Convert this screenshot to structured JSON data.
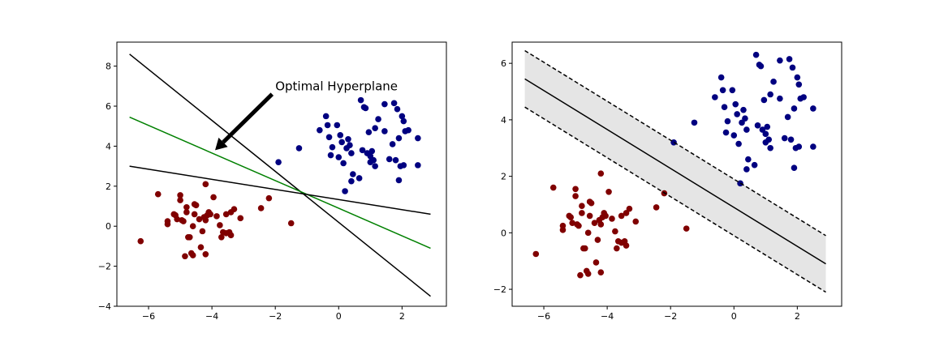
{
  "chart_data": [
    {
      "type": "scatter",
      "title": "",
      "xlabel": "",
      "ylabel": "",
      "xlim": [
        -7.0,
        3.4
      ],
      "ylim": [
        -4.0,
        9.2
      ],
      "xticks": [
        -6,
        -4,
        -2,
        0,
        2
      ],
      "yticks": [
        -4,
        -2,
        0,
        2,
        4,
        6,
        8
      ],
      "tick_labels_x": [
        "−6",
        "−4",
        "−2",
        "0",
        "2"
      ],
      "tick_labels_y": [
        "−4",
        "−2",
        "0",
        "2",
        "4",
        "6",
        "8"
      ],
      "grid": false,
      "annotation": {
        "text": "Optimal Hyperplane",
        "text_xy": [
          -2.0,
          7.0
        ],
        "arrow_start": [
          -2.1,
          6.6
        ],
        "arrow_end": [
          -3.9,
          3.8
        ]
      },
      "series": [
        {
          "kind": "points",
          "color": "#800000",
          "points": [
            [
              -6.25,
              -0.75
            ],
            [
              -5.7,
              1.6
            ],
            [
              -5.4,
              0.25
            ],
            [
              -5.4,
              0.1
            ],
            [
              -5.2,
              0.6
            ],
            [
              -5.15,
              0.55
            ],
            [
              -5.1,
              0.35
            ],
            [
              -5.0,
              1.55
            ],
            [
              -5.0,
              1.3
            ],
            [
              -4.95,
              0.3
            ],
            [
              -4.9,
              0.25
            ],
            [
              -4.85,
              -1.5
            ],
            [
              -4.8,
              0.95
            ],
            [
              -4.8,
              0.7
            ],
            [
              -4.75,
              -0.55
            ],
            [
              -4.7,
              -0.55
            ],
            [
              -4.65,
              -1.35
            ],
            [
              -4.6,
              -1.45
            ],
            [
              -4.6,
              0.0
            ],
            [
              -4.55,
              1.1
            ],
            [
              -4.55,
              0.6
            ],
            [
              -4.5,
              1.05
            ],
            [
              -4.4,
              0.35
            ],
            [
              -4.35,
              -1.05
            ],
            [
              -4.3,
              -0.25
            ],
            [
              -4.25,
              0.45
            ],
            [
              -4.2,
              0.3
            ],
            [
              -4.2,
              -1.4
            ],
            [
              -4.2,
              2.1
            ],
            [
              -4.15,
              0.55
            ],
            [
              -4.1,
              0.7
            ],
            [
              -4.05,
              0.6
            ],
            [
              -3.95,
              1.45
            ],
            [
              -3.85,
              0.5
            ],
            [
              -3.75,
              0.05
            ],
            [
              -3.7,
              -0.55
            ],
            [
              -3.65,
              -0.3
            ],
            [
              -3.55,
              0.6
            ],
            [
              -3.55,
              -0.35
            ],
            [
              -3.45,
              -0.3
            ],
            [
              -3.4,
              0.7
            ],
            [
              -3.4,
              -0.45
            ],
            [
              -3.3,
              0.85
            ],
            [
              -3.1,
              0.4
            ],
            [
              -2.45,
              0.9
            ],
            [
              -2.2,
              1.4
            ],
            [
              -1.5,
              0.15
            ]
          ]
        },
        {
          "kind": "points",
          "color": "#000080",
          "points": [
            [
              -1.9,
              3.2
            ],
            [
              -1.25,
              3.9
            ],
            [
              -0.6,
              4.8
            ],
            [
              -0.4,
              5.5
            ],
            [
              -0.35,
              5.05
            ],
            [
              -0.3,
              4.45
            ],
            [
              -0.25,
              3.55
            ],
            [
              -0.2,
              3.95
            ],
            [
              -0.05,
              5.05
            ],
            [
              0.0,
              3.45
            ],
            [
              0.05,
              4.55
            ],
            [
              0.1,
              4.2
            ],
            [
              0.15,
              3.15
            ],
            [
              0.2,
              1.75
            ],
            [
              0.25,
              3.9
            ],
            [
              0.3,
              4.35
            ],
            [
              0.35,
              4.05
            ],
            [
              0.4,
              2.25
            ],
            [
              0.4,
              3.65
            ],
            [
              0.45,
              2.6
            ],
            [
              0.65,
              2.4
            ],
            [
              0.7,
              6.3
            ],
            [
              0.75,
              3.8
            ],
            [
              0.8,
              5.95
            ],
            [
              0.85,
              5.9
            ],
            [
              0.9,
              3.65
            ],
            [
              0.95,
              4.7
            ],
            [
              1.0,
              3.5
            ],
            [
              1.0,
              3.2
            ],
            [
              1.05,
              3.75
            ],
            [
              1.1,
              3.3
            ],
            [
              1.15,
              3.0
            ],
            [
              1.15,
              4.9
            ],
            [
              1.25,
              5.35
            ],
            [
              1.45,
              6.1
            ],
            [
              1.45,
              4.75
            ],
            [
              1.6,
              3.35
            ],
            [
              1.7,
              4.1
            ],
            [
              1.75,
              6.15
            ],
            [
              1.8,
              3.3
            ],
            [
              1.85,
              5.85
            ],
            [
              1.9,
              2.3
            ],
            [
              1.9,
              4.4
            ],
            [
              1.95,
              3.0
            ],
            [
              2.0,
              5.5
            ],
            [
              2.05,
              3.05
            ],
            [
              2.05,
              5.25
            ],
            [
              2.1,
              4.75
            ],
            [
              2.2,
              4.8
            ],
            [
              2.5,
              3.05
            ],
            [
              2.5,
              4.4
            ]
          ]
        },
        {
          "kind": "line",
          "color": "#000000",
          "x": [
            -6.6,
            2.9
          ],
          "y": [
            8.6,
            -3.5
          ]
        },
        {
          "kind": "line",
          "color": "#008000",
          "x": [
            -6.6,
            2.9
          ],
          "y": [
            5.45,
            -1.1
          ]
        },
        {
          "kind": "line",
          "color": "#000000",
          "x": [
            -6.6,
            2.9
          ],
          "y": [
            3.0,
            0.6
          ]
        }
      ]
    },
    {
      "type": "scatter",
      "title": "",
      "xlabel": "",
      "ylabel": "",
      "xlim": [
        -7.0,
        3.4
      ],
      "ylim": [
        -2.6,
        6.75
      ],
      "xticks": [
        -6,
        -4,
        -2,
        0,
        2
      ],
      "yticks": [
        -2,
        0,
        2,
        4,
        6
      ],
      "tick_labels_x": [
        "−6",
        "−4",
        "−2",
        "0",
        "2"
      ],
      "tick_labels_y": [
        "−2",
        "0",
        "2",
        "4",
        "6"
      ],
      "grid": false,
      "margin_band": {
        "color": "#d3d3d3",
        "x": [
          -6.6,
          2.9
        ],
        "upper": [
          6.45,
          -0.1
        ],
        "lower": [
          4.45,
          -2.1
        ]
      },
      "series": [
        {
          "kind": "points",
          "color": "#800000",
          "points": [
            [
              -6.25,
              -0.75
            ],
            [
              -5.7,
              1.6
            ],
            [
              -5.4,
              0.25
            ],
            [
              -5.4,
              0.1
            ],
            [
              -5.2,
              0.6
            ],
            [
              -5.15,
              0.55
            ],
            [
              -5.1,
              0.35
            ],
            [
              -5.0,
              1.55
            ],
            [
              -5.0,
              1.3
            ],
            [
              -4.95,
              0.3
            ],
            [
              -4.9,
              0.25
            ],
            [
              -4.85,
              -1.5
            ],
            [
              -4.8,
              0.95
            ],
            [
              -4.8,
              0.7
            ],
            [
              -4.75,
              -0.55
            ],
            [
              -4.7,
              -0.55
            ],
            [
              -4.65,
              -1.35
            ],
            [
              -4.6,
              -1.45
            ],
            [
              -4.6,
              0.0
            ],
            [
              -4.55,
              1.1
            ],
            [
              -4.55,
              0.6
            ],
            [
              -4.5,
              1.05
            ],
            [
              -4.4,
              0.35
            ],
            [
              -4.35,
              -1.05
            ],
            [
              -4.3,
              -0.25
            ],
            [
              -4.25,
              0.45
            ],
            [
              -4.2,
              0.3
            ],
            [
              -4.2,
              -1.4
            ],
            [
              -4.2,
              2.1
            ],
            [
              -4.15,
              0.55
            ],
            [
              -4.1,
              0.7
            ],
            [
              -4.05,
              0.6
            ],
            [
              -3.95,
              1.45
            ],
            [
              -3.85,
              0.5
            ],
            [
              -3.75,
              0.05
            ],
            [
              -3.7,
              -0.55
            ],
            [
              -3.65,
              -0.3
            ],
            [
              -3.55,
              0.6
            ],
            [
              -3.55,
              -0.35
            ],
            [
              -3.45,
              -0.3
            ],
            [
              -3.4,
              0.7
            ],
            [
              -3.4,
              -0.45
            ],
            [
              -3.3,
              0.85
            ],
            [
              -3.1,
              0.4
            ],
            [
              -2.45,
              0.9
            ],
            [
              -2.2,
              1.4
            ],
            [
              -1.5,
              0.15
            ]
          ]
        },
        {
          "kind": "points",
          "color": "#000080",
          "points": [
            [
              -1.9,
              3.2
            ],
            [
              -1.25,
              3.9
            ],
            [
              -0.6,
              4.8
            ],
            [
              -0.4,
              5.5
            ],
            [
              -0.35,
              5.05
            ],
            [
              -0.3,
              4.45
            ],
            [
              -0.25,
              3.55
            ],
            [
              -0.2,
              3.95
            ],
            [
              -0.05,
              5.05
            ],
            [
              0.0,
              3.45
            ],
            [
              0.05,
              4.55
            ],
            [
              0.1,
              4.2
            ],
            [
              0.15,
              3.15
            ],
            [
              0.2,
              1.75
            ],
            [
              0.25,
              3.9
            ],
            [
              0.3,
              4.35
            ],
            [
              0.35,
              4.05
            ],
            [
              0.4,
              2.25
            ],
            [
              0.4,
              3.65
            ],
            [
              0.45,
              2.6
            ],
            [
              0.65,
              2.4
            ],
            [
              0.7,
              6.3
            ],
            [
              0.75,
              3.8
            ],
            [
              0.8,
              5.95
            ],
            [
              0.85,
              5.9
            ],
            [
              0.9,
              3.65
            ],
            [
              0.95,
              4.7
            ],
            [
              1.0,
              3.5
            ],
            [
              1.0,
              3.2
            ],
            [
              1.05,
              3.75
            ],
            [
              1.1,
              3.3
            ],
            [
              1.15,
              3.0
            ],
            [
              1.15,
              4.9
            ],
            [
              1.25,
              5.35
            ],
            [
              1.45,
              6.1
            ],
            [
              1.45,
              4.75
            ],
            [
              1.6,
              3.35
            ],
            [
              1.7,
              4.1
            ],
            [
              1.75,
              6.15
            ],
            [
              1.8,
              3.3
            ],
            [
              1.85,
              5.85
            ],
            [
              1.9,
              2.3
            ],
            [
              1.9,
              4.4
            ],
            [
              1.95,
              3.0
            ],
            [
              2.0,
              5.5
            ],
            [
              2.05,
              3.05
            ],
            [
              2.05,
              5.25
            ],
            [
              2.1,
              4.75
            ],
            [
              2.2,
              4.8
            ],
            [
              2.5,
              3.05
            ],
            [
              2.5,
              4.4
            ]
          ]
        },
        {
          "kind": "line",
          "color": "#000000",
          "style": "solid",
          "x": [
            -6.6,
            2.9
          ],
          "y": [
            5.45,
            -1.1
          ]
        },
        {
          "kind": "line",
          "color": "#000000",
          "style": "dashed",
          "x": [
            -6.6,
            2.9
          ],
          "y": [
            6.45,
            -0.1
          ]
        },
        {
          "kind": "line",
          "color": "#000000",
          "style": "dashed",
          "x": [
            -6.6,
            2.9
          ],
          "y": [
            4.45,
            -2.1
          ]
        }
      ]
    }
  ]
}
